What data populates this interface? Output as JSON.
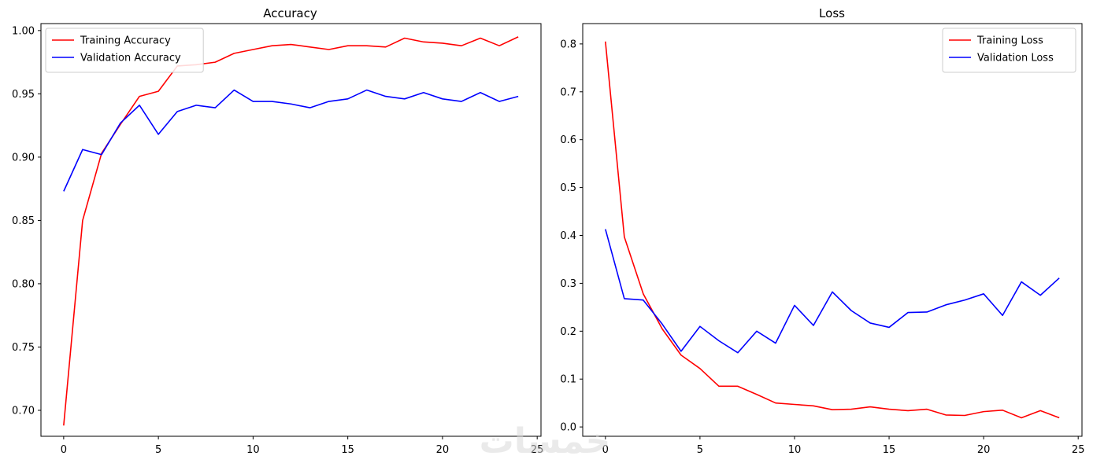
{
  "colors": {
    "training": "#ff0000",
    "validation": "#0000ff",
    "axes": "#000000",
    "background": "#ffffff"
  },
  "watermark": {
    "text": "خمسات"
  },
  "chart_data": [
    {
      "type": "line",
      "title": "Accuracy",
      "xlabel": "",
      "ylabel": "",
      "xlim": [
        -1.2,
        25.2
      ],
      "ylim": [
        0.6795,
        1.0055
      ],
      "xticks": [
        0,
        5,
        10,
        15,
        20,
        25
      ],
      "yticks": [
        0.7,
        0.75,
        0.8,
        0.85,
        0.9,
        0.95,
        1.0
      ],
      "ytick_labels": [
        "0.70",
        "0.75",
        "0.80",
        "0.85",
        "0.90",
        "0.95",
        "1.00"
      ],
      "grid": false,
      "legend_position": "upper-left",
      "x": [
        0,
        1,
        2,
        3,
        4,
        5,
        6,
        7,
        8,
        9,
        10,
        11,
        12,
        13,
        14,
        15,
        16,
        17,
        18,
        19,
        20,
        21,
        22,
        23,
        24
      ],
      "series": [
        {
          "name": "Training Accuracy",
          "color": "#ff0000",
          "values": [
            0.688,
            0.85,
            0.903,
            0.926,
            0.948,
            0.952,
            0.972,
            0.973,
            0.975,
            0.982,
            0.985,
            0.988,
            0.989,
            0.987,
            0.985,
            0.988,
            0.988,
            0.987,
            0.994,
            0.991,
            0.99,
            0.988,
            0.994,
            0.988,
            0.995
          ]
        },
        {
          "name": "Validation Accuracy",
          "color": "#0000ff",
          "values": [
            0.873,
            0.906,
            0.902,
            0.927,
            0.941,
            0.918,
            0.936,
            0.941,
            0.939,
            0.953,
            0.944,
            0.944,
            0.942,
            0.939,
            0.944,
            0.946,
            0.953,
            0.948,
            0.946,
            0.951,
            0.946,
            0.944,
            0.951,
            0.944,
            0.948
          ]
        }
      ]
    },
    {
      "type": "line",
      "title": "Loss",
      "xlabel": "",
      "ylabel": "",
      "xlim": [
        -1.2,
        25.2
      ],
      "ylim": [
        -0.0195,
        0.8425
      ],
      "xticks": [
        0,
        5,
        10,
        15,
        20,
        25
      ],
      "yticks": [
        0.0,
        0.1,
        0.2,
        0.3,
        0.4,
        0.5,
        0.6,
        0.7,
        0.8
      ],
      "ytick_labels": [
        "0.0",
        "0.1",
        "0.2",
        "0.3",
        "0.4",
        "0.5",
        "0.6",
        "0.7",
        "0.8"
      ],
      "grid": false,
      "legend_position": "upper-right",
      "x": [
        0,
        1,
        2,
        3,
        4,
        5,
        6,
        7,
        8,
        9,
        10,
        11,
        12,
        13,
        14,
        15,
        16,
        17,
        18,
        19,
        20,
        21,
        22,
        23,
        24
      ],
      "series": [
        {
          "name": "Training Loss",
          "color": "#ff0000",
          "values": [
            0.805,
            0.397,
            0.278,
            0.205,
            0.15,
            0.122,
            0.085,
            0.085,
            0.068,
            0.05,
            0.047,
            0.044,
            0.036,
            0.037,
            0.042,
            0.037,
            0.034,
            0.037,
            0.025,
            0.024,
            0.032,
            0.035,
            0.019,
            0.034,
            0.019
          ]
        },
        {
          "name": "Validation Loss",
          "color": "#0000ff",
          "values": [
            0.413,
            0.268,
            0.265,
            0.215,
            0.158,
            0.21,
            0.18,
            0.155,
            0.2,
            0.175,
            0.254,
            0.212,
            0.282,
            0.243,
            0.217,
            0.208,
            0.239,
            0.24,
            0.255,
            0.265,
            0.278,
            0.233,
            0.303,
            0.275,
            0.311
          ]
        }
      ]
    }
  ]
}
